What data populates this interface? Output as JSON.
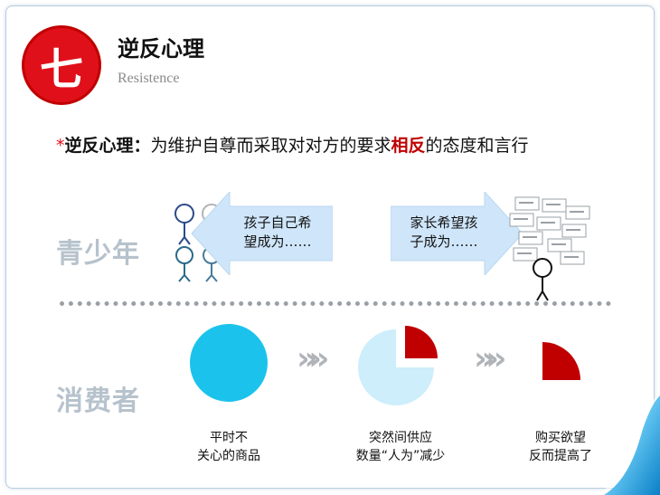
{
  "header": {
    "badge": "七",
    "title": "逆反心理",
    "subtitle": "Resistence"
  },
  "definition": {
    "star": "*",
    "term": "逆反心理：",
    "text_before": "为维护自尊而采取对对方的要求",
    "highlight": "相反",
    "text_after": "的态度和言行"
  },
  "teen_row": {
    "label": "青少年",
    "left_arrow_text_1": "孩子自己希",
    "left_arrow_text_2": "望成为……",
    "right_arrow_text_1": "家长希望孩",
    "right_arrow_text_2": "子成为……"
  },
  "consumer_row": {
    "label": "消费者",
    "captions": [
      {
        "line1": "平时不",
        "line2": "关心的商品"
      },
      {
        "line1": "突然间供应",
        "line2": "数量“人为”减少"
      },
      {
        "line1": "购买欲望",
        "line2": "反而提高了"
      }
    ],
    "chevrons": "»»"
  },
  "colors": {
    "accent_red": "#e0101a",
    "cyan": "#1bc3ec",
    "light_cyan": "#cdeefa",
    "arrow_blue": "#cfe6fa",
    "dark_red": "#c00000",
    "label_gray": "#b6c2cc"
  }
}
